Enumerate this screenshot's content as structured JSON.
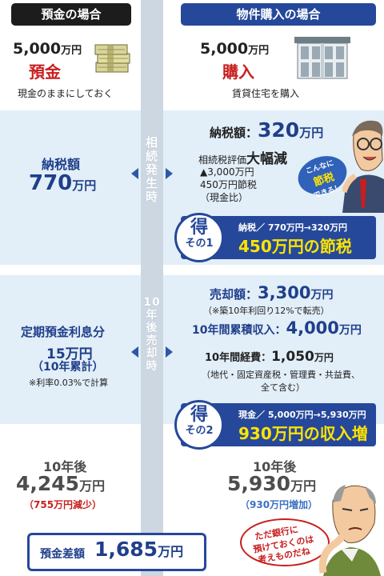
{
  "headers": {
    "left": "預金の場合",
    "right": "物件購入の場合"
  },
  "top": {
    "left": {
      "amount_num": "5,000",
      "amount_unit": "万円",
      "label": "預金",
      "note": "現金のままにしておく",
      "icon": "money-stack-icon"
    },
    "right": {
      "amount_num": "5,000",
      "amount_unit": "万円",
      "label": "購入",
      "note": "賃貸住宅を購入",
      "icon": "apartment-building-icon"
    }
  },
  "section1": {
    "spine": "相続発生時",
    "left": {
      "label": "納税額",
      "value": "770",
      "unit": "万円"
    },
    "right": {
      "label": "納税額：",
      "value": "320",
      "unit": "万円",
      "eval_prefix": "相続税評価",
      "eval_big": "大幅減",
      "line1": "▲3,000万円",
      "line2": "450万円節税",
      "line3": "（現金比）",
      "bubble_line1": "こんなに",
      "bubble_line2": "節税",
      "bubble_line3": "できる！"
    },
    "gain": {
      "char": "得",
      "num": "その1",
      "sub": "納税／ 770万円→320万円",
      "main": "450万円の節税"
    }
  },
  "section2": {
    "spine": "10年後 売却時",
    "left": {
      "label": "定期預金利息分",
      "value": "15万円",
      "sub": "（10年累計）",
      "note": "※利率0.03%で計算"
    },
    "right": {
      "sale_label": "売却額：",
      "sale_value": "3,300",
      "sale_unit": "万円",
      "sale_note": "（※築10年利回り12%で転売）",
      "income_label": "10年間累積収入：",
      "income_value": "4,000",
      "income_unit": "万円",
      "expense_label": "10年間経費：",
      "expense_value": "1,050",
      "expense_unit": "万円",
      "expense_note1": "（地代・固定資産税・管理費・共益費、",
      "expense_note2": "全て含む）"
    },
    "gain": {
      "char": "得",
      "num": "その2",
      "sub": "現金／ 5,000万円→5,930万円",
      "main": "930万円の収入増"
    }
  },
  "bottom": {
    "left": {
      "label": "10年後",
      "value": "4,245",
      "unit": "万円",
      "diff": "（755万円減少）"
    },
    "right": {
      "label": "10年後",
      "value": "5,930",
      "unit": "万円",
      "diff": "（930万円増加）"
    },
    "thought_line1": "ただ銀行に",
    "thought_line2": "預けておくのは",
    "thought_line3": "考えものだね",
    "total_label": "預金差額",
    "total_value": "1,685",
    "total_unit": "万円"
  },
  "colors": {
    "navy": "#26489a",
    "red": "#c81e1e",
    "yellow": "#ffe400",
    "band": "#e2eef8"
  }
}
